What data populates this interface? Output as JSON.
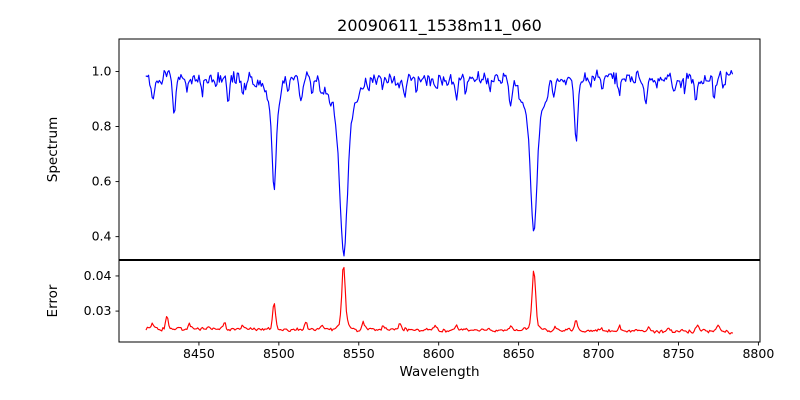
{
  "figure": {
    "title": "20090611_1538m11_060",
    "xlabel": "Wavelength",
    "background": "#ffffff",
    "axis_color": "#000000",
    "text_color": "#000000"
  },
  "chart_data": [
    {
      "type": "line",
      "name": "spectrum",
      "ylabel": "Spectrum",
      "color": "#0000ff",
      "xlim": [
        8400,
        8801
      ],
      "ylim": [
        0.317,
        1.118
      ],
      "yticks": [
        {
          "value": 1.0,
          "label": "1.0"
        },
        {
          "value": 0.8,
          "label": "0.8"
        },
        {
          "value": 0.6,
          "label": "0.6"
        },
        {
          "value": 0.4,
          "label": "0.4"
        }
      ],
      "x_start": 8417,
      "x_end": 8784,
      "x_step": 0.75,
      "continuum": 0.975,
      "noise_sigma": 0.012,
      "seed": 1538,
      "absorption_lines": [
        {
          "center": 8421.0,
          "depth": 0.06,
          "sigma": 0.8
        },
        {
          "center": 8427.0,
          "depth": 0.03,
          "sigma": 0.6
        },
        {
          "center": 8434.5,
          "depth": 0.115,
          "sigma": 0.9
        },
        {
          "center": 8442.0,
          "depth": 0.045,
          "sigma": 0.7
        },
        {
          "center": 8452.0,
          "depth": 0.05,
          "sigma": 0.7
        },
        {
          "center": 8460.0,
          "depth": 0.04,
          "sigma": 0.6
        },
        {
          "center": 8468.5,
          "depth": 0.08,
          "sigma": 0.9
        },
        {
          "center": 8477.0,
          "depth": 0.05,
          "sigma": 0.7
        },
        {
          "center": 8486.0,
          "depth": 0.03,
          "sigma": 0.6
        },
        {
          "center": 8497.0,
          "depth": 0.3,
          "sigma": 1.3
        },
        {
          "center": 8497.0,
          "depth": 0.1,
          "sigma": 4.0
        },
        {
          "center": 8506.0,
          "depth": 0.04,
          "sigma": 0.7
        },
        {
          "center": 8514.0,
          "depth": 0.095,
          "sigma": 0.9
        },
        {
          "center": 8521.0,
          "depth": 0.045,
          "sigma": 0.7
        },
        {
          "center": 8527.0,
          "depth": 0.06,
          "sigma": 0.8
        },
        {
          "center": 8540.5,
          "depth": 0.44,
          "sigma": 2.2
        },
        {
          "center": 8540.5,
          "depth": 0.19,
          "sigma": 6.5
        },
        {
          "center": 8556.0,
          "depth": 0.045,
          "sigma": 0.7
        },
        {
          "center": 8565.0,
          "depth": 0.035,
          "sigma": 0.6
        },
        {
          "center": 8579.0,
          "depth": 0.06,
          "sigma": 0.8
        },
        {
          "center": 8586.0,
          "depth": 0.035,
          "sigma": 0.6
        },
        {
          "center": 8598.0,
          "depth": 0.045,
          "sigma": 0.7
        },
        {
          "center": 8611.0,
          "depth": 0.075,
          "sigma": 0.9
        },
        {
          "center": 8617.0,
          "depth": 0.04,
          "sigma": 0.6
        },
        {
          "center": 8632.0,
          "depth": 0.035,
          "sigma": 0.6
        },
        {
          "center": 8645.0,
          "depth": 0.09,
          "sigma": 0.9
        },
        {
          "center": 8650.5,
          "depth": 0.04,
          "sigma": 0.6
        },
        {
          "center": 8659.5,
          "depth": 0.38,
          "sigma": 1.8
        },
        {
          "center": 8659.5,
          "depth": 0.18,
          "sigma": 5.5
        },
        {
          "center": 8672.0,
          "depth": 0.045,
          "sigma": 0.7
        },
        {
          "center": 8686.0,
          "depth": 0.215,
          "sigma": 1.1
        },
        {
          "center": 8695.0,
          "depth": 0.03,
          "sigma": 0.6
        },
        {
          "center": 8702.0,
          "depth": 0.045,
          "sigma": 0.7
        },
        {
          "center": 8713.0,
          "depth": 0.065,
          "sigma": 0.8
        },
        {
          "center": 8722.0,
          "depth": 0.035,
          "sigma": 0.6
        },
        {
          "center": 8729.5,
          "depth": 0.105,
          "sigma": 0.9
        },
        {
          "center": 8736.0,
          "depth": 0.045,
          "sigma": 0.7
        },
        {
          "center": 8747.0,
          "depth": 0.055,
          "sigma": 0.7
        },
        {
          "center": 8754.0,
          "depth": 0.035,
          "sigma": 0.6
        },
        {
          "center": 8761.0,
          "depth": 0.095,
          "sigma": 0.9
        },
        {
          "center": 8772.0,
          "depth": 0.06,
          "sigma": 0.8
        },
        {
          "center": 8778.0,
          "depth": 0.035,
          "sigma": 0.6
        }
      ]
    },
    {
      "type": "line",
      "name": "error",
      "ylabel": "Error",
      "xlabel": "Wavelength",
      "color": "#ff0000",
      "xlim": [
        8400,
        8801
      ],
      "ylim": [
        0.0212,
        0.0444
      ],
      "yticks": [
        {
          "value": 0.04,
          "label": "0.04"
        },
        {
          "value": 0.03,
          "label": "0.03"
        }
      ],
      "xticks": [
        {
          "value": 8450,
          "label": "8450"
        },
        {
          "value": 8500,
          "label": "8500"
        },
        {
          "value": 8550,
          "label": "8550"
        },
        {
          "value": 8600,
          "label": "8600"
        },
        {
          "value": 8650,
          "label": "8650"
        },
        {
          "value": 8700,
          "label": "8700"
        },
        {
          "value": 8750,
          "label": "8750"
        },
        {
          "value": 8800,
          "label": "8800"
        }
      ],
      "x_start": 8417,
      "x_end": 8784,
      "x_step": 0.75,
      "baseline_start": 0.025,
      "baseline_end": 0.0242,
      "noise_sigma": 0.00025,
      "seed": 60,
      "spikes": [
        {
          "center": 8421.0,
          "amp": 0.0012,
          "sigma": 0.8
        },
        {
          "center": 8430.0,
          "amp": 0.004,
          "sigma": 0.8
        },
        {
          "center": 8444.0,
          "amp": 0.0014,
          "sigma": 0.7
        },
        {
          "center": 8466.0,
          "amp": 0.0022,
          "sigma": 0.8
        },
        {
          "center": 8477.0,
          "amp": 0.001,
          "sigma": 0.7
        },
        {
          "center": 8497.0,
          "amp": 0.0074,
          "sigma": 0.9
        },
        {
          "center": 8517.0,
          "amp": 0.0022,
          "sigma": 0.8
        },
        {
          "center": 8527.0,
          "amp": 0.001,
          "sigma": 0.7
        },
        {
          "center": 8540.5,
          "amp": 0.0165,
          "sigma": 1.0
        },
        {
          "center": 8540.5,
          "amp": 0.002,
          "sigma": 3.0
        },
        {
          "center": 8553.0,
          "amp": 0.002,
          "sigma": 0.8
        },
        {
          "center": 8565.0,
          "amp": 0.0008,
          "sigma": 0.7
        },
        {
          "center": 8576.0,
          "amp": 0.0019,
          "sigma": 0.8
        },
        {
          "center": 8598.0,
          "amp": 0.0009,
          "sigma": 0.7
        },
        {
          "center": 8611.0,
          "amp": 0.0012,
          "sigma": 0.8
        },
        {
          "center": 8632.0,
          "amp": 0.0008,
          "sigma": 0.7
        },
        {
          "center": 8645.0,
          "amp": 0.0013,
          "sigma": 0.8
        },
        {
          "center": 8659.5,
          "amp": 0.0158,
          "sigma": 1.0
        },
        {
          "center": 8659.5,
          "amp": 0.002,
          "sigma": 3.0
        },
        {
          "center": 8673.0,
          "amp": 0.0009,
          "sigma": 0.7
        },
        {
          "center": 8686.0,
          "amp": 0.0028,
          "sigma": 0.8
        },
        {
          "center": 8702.0,
          "amp": 0.0008,
          "sigma": 0.7
        },
        {
          "center": 8713.0,
          "amp": 0.001,
          "sigma": 0.7
        },
        {
          "center": 8731.0,
          "amp": 0.0013,
          "sigma": 0.8
        },
        {
          "center": 8744.0,
          "amp": 0.0009,
          "sigma": 0.7
        },
        {
          "center": 8762.0,
          "amp": 0.0018,
          "sigma": 0.8
        },
        {
          "center": 8775.0,
          "amp": 0.0014,
          "sigma": 0.8
        }
      ]
    }
  ]
}
